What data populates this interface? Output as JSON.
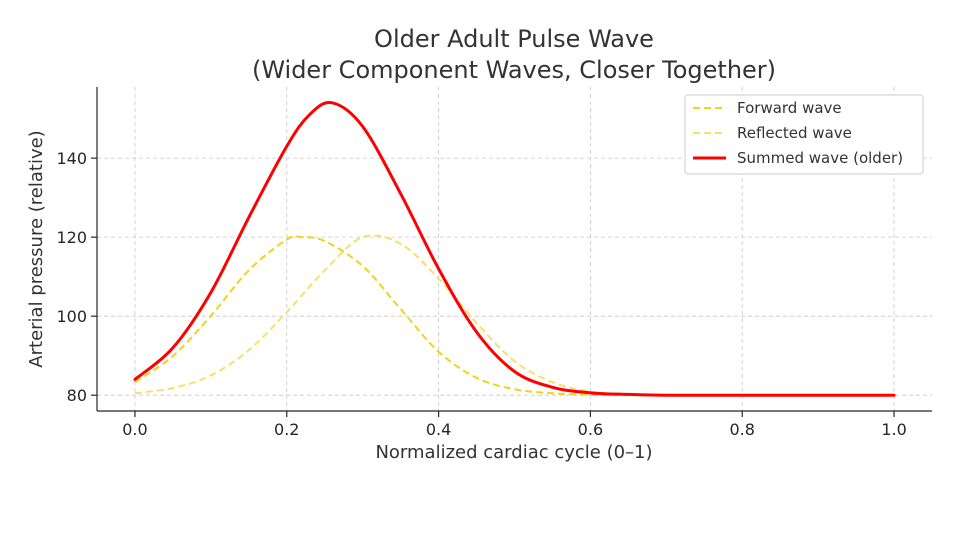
{
  "chart_data": {
    "type": "line",
    "title": [
      "Older Adult Pulse Wave",
      "(Wider Component Waves, Closer Together)"
    ],
    "xlabel": "Normalized cardiac cycle (0–1)",
    "ylabel": "Arterial pressure (relative)",
    "xlim": [
      -0.05,
      1.05
    ],
    "ylim": [
      76,
      158
    ],
    "xticks": [
      0.0,
      0.2,
      0.4,
      0.6,
      0.8,
      1.0
    ],
    "xtick_labels": [
      "0.0",
      "0.2",
      "0.4",
      "0.6",
      "0.8",
      "1.0"
    ],
    "yticks": [
      80,
      100,
      120,
      140
    ],
    "ytick_labels": [
      "80",
      "100",
      "120",
      "140"
    ],
    "grid": true,
    "legend_position": "top-right",
    "series": [
      {
        "name": "Forward wave",
        "style": "dashed",
        "color": "#f2d21b",
        "x": [
          0.0,
          0.05,
          0.1,
          0.15,
          0.2,
          0.22,
          0.25,
          0.3,
          0.35,
          0.4,
          0.45,
          0.5,
          0.55,
          0.6,
          0.7,
          0.8,
          1.0
        ],
        "y": [
          83.3,
          89.9,
          100.1,
          111.6,
          119.4,
          120.0,
          119.0,
          112.7,
          101.8,
          91.0,
          84.4,
          81.5,
          80.5,
          80.1,
          80.0,
          80.0,
          80.0
        ]
      },
      {
        "name": "Reflected wave",
        "style": "dashed",
        "color": "#f7e06a",
        "x": [
          0.0,
          0.05,
          0.1,
          0.15,
          0.2,
          0.25,
          0.3,
          0.35,
          0.4,
          0.45,
          0.5,
          0.55,
          0.6,
          0.65,
          0.7,
          0.8,
          1.0
        ],
        "y": [
          80.5,
          81.8,
          85.0,
          91.4,
          101.0,
          111.6,
          120.0,
          118.3,
          109.5,
          98.3,
          88.6,
          83.3,
          80.9,
          80.2,
          80.0,
          80.0,
          80.0
        ]
      },
      {
        "name": "Summed wave (older)",
        "style": "solid",
        "color": "#ff0000",
        "x": [
          0.0,
          0.05,
          0.1,
          0.15,
          0.2,
          0.23,
          0.26,
          0.3,
          0.35,
          0.4,
          0.45,
          0.5,
          0.55,
          0.6,
          0.65,
          0.7,
          0.8,
          1.0
        ],
        "y": [
          84.0,
          92.0,
          106.0,
          125.0,
          143.0,
          151.0,
          154.0,
          148.0,
          131.0,
          112.0,
          96.0,
          86.0,
          82.0,
          80.6,
          80.2,
          80.0,
          80.0,
          80.0
        ]
      }
    ]
  }
}
